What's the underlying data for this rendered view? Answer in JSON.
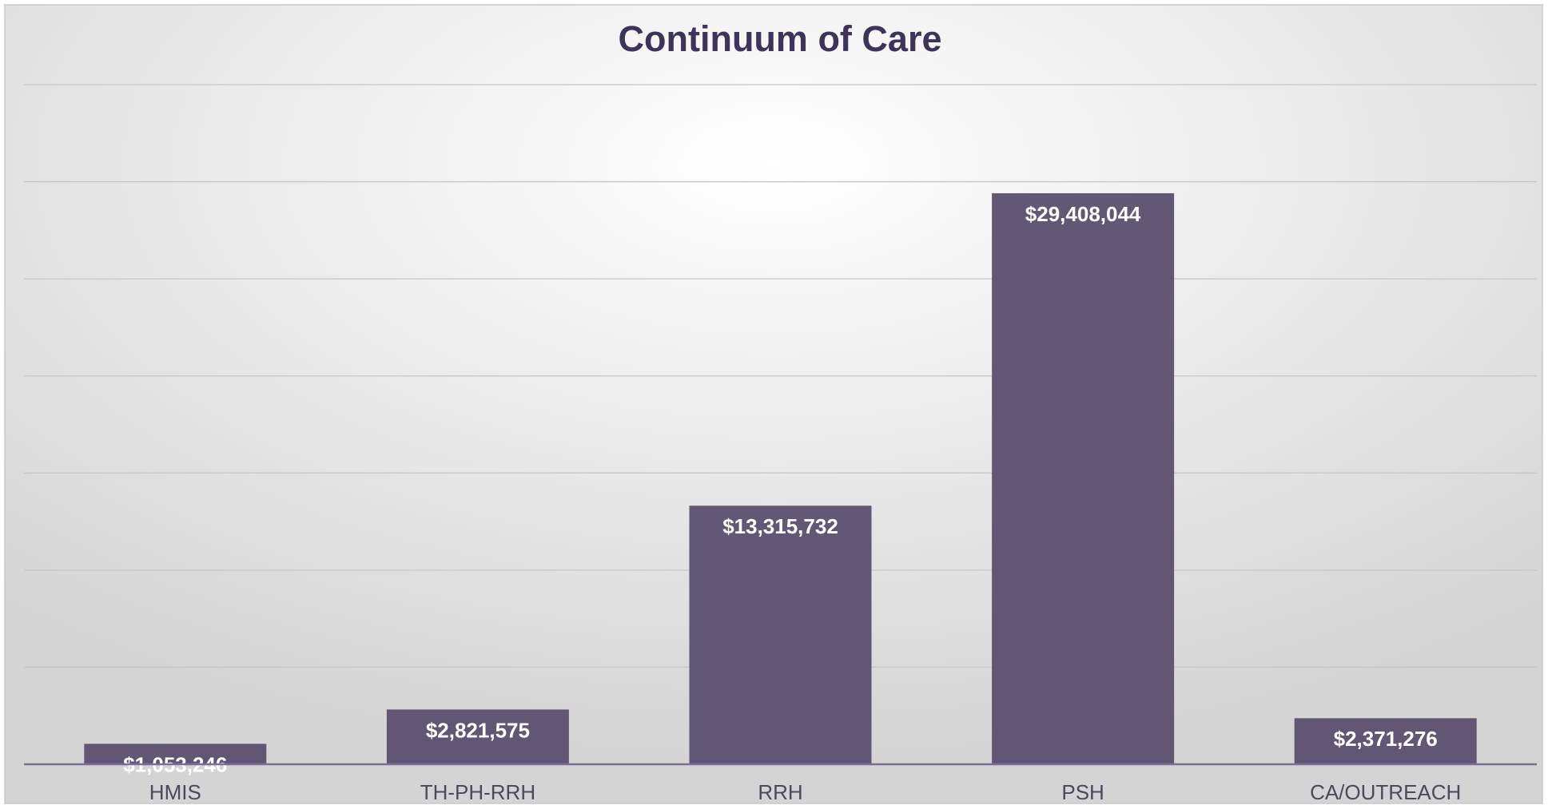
{
  "chart_data": {
    "type": "bar",
    "title": "Continuum of Care",
    "categories": [
      "HMIS",
      "TH-PH-RRH",
      "RRH",
      "PSH",
      "CA/OUTREACH"
    ],
    "values": [
      1053246,
      2821575,
      13315732,
      29408044,
      2371276
    ],
    "value_labels": [
      "$1,053,246",
      "$2,821,575",
      "$13,315,732",
      "$29,408,044",
      "$2,371,276"
    ],
    "color": "#5e5272",
    "ylim": [
      0,
      35000000
    ],
    "yticks": [
      0,
      5000000,
      10000000,
      15000000,
      20000000,
      25000000,
      30000000,
      35000000
    ],
    "grid": true
  }
}
